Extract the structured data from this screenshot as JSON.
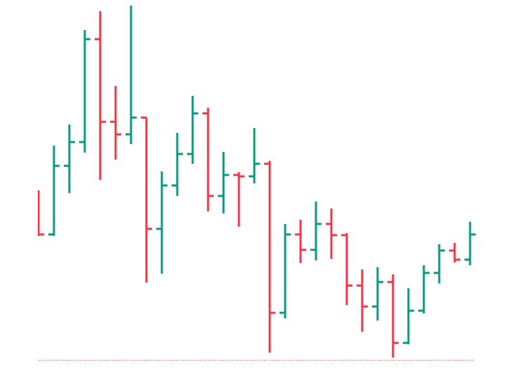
{
  "chart_data": {
    "type": "ohlc",
    "categories": [
      null,
      null,
      null,
      null,
      null,
      null,
      null,
      null,
      null,
      null,
      null,
      null,
      null,
      null,
      null,
      null,
      null,
      null,
      null,
      null,
      null,
      null,
      null,
      null,
      null,
      null,
      null,
      null,
      null
    ],
    "open": [
      49,
      37,
      56.6,
      63.4,
      92.8,
      69.2,
      65.6,
      70.4,
      38.6,
      51,
      60,
      71.6,
      48,
      54,
      53.6,
      57.2,
      14.6,
      37,
      32.6,
      40,
      36.8,
      22.4,
      16.4,
      23.4,
      6,
      15.2,
      26,
      32.4,
      29.8
    ],
    "high": [
      49.6,
      62.4,
      68.4,
      95.4,
      100.8,
      79.4,
      102.4,
      70.4,
      55,
      66,
      76.6,
      73.2,
      60.6,
      54.8,
      67.4,
      58,
      40,
      41.2,
      46.4,
      44.4,
      37.4,
      27,
      27.6,
      25.6,
      21.6,
      28.2,
      34.2,
      34.6,
      40.6
    ],
    "low": [
      36.6,
      36.6,
      48.8,
      60.4,
      52.6,
      58.4,
      62.8,
      23.2,
      25.8,
      48,
      57.2,
      43.6,
      43,
      39.2,
      51.6,
      3.2,
      13,
      28.8,
      29.6,
      30,
      16.8,
      9.2,
      12.4,
      1.8,
      5.6,
      14.4,
      23,
      29,
      28.2
    ],
    "close": [
      37,
      56.6,
      63.4,
      92.8,
      69.2,
      65.6,
      70.4,
      38.6,
      51,
      60,
      71.6,
      48,
      54,
      53.6,
      57.2,
      14.6,
      37,
      32.6,
      40,
      36.8,
      22.4,
      16.4,
      23.4,
      6,
      15.2,
      26,
      32.4,
      29.8,
      37
    ],
    "up_color": "#089981",
    "down_color": "#f23645",
    "ylim": [
      0,
      104
    ],
    "hline": {
      "value": 1,
      "color": "#f23645"
    }
  }
}
